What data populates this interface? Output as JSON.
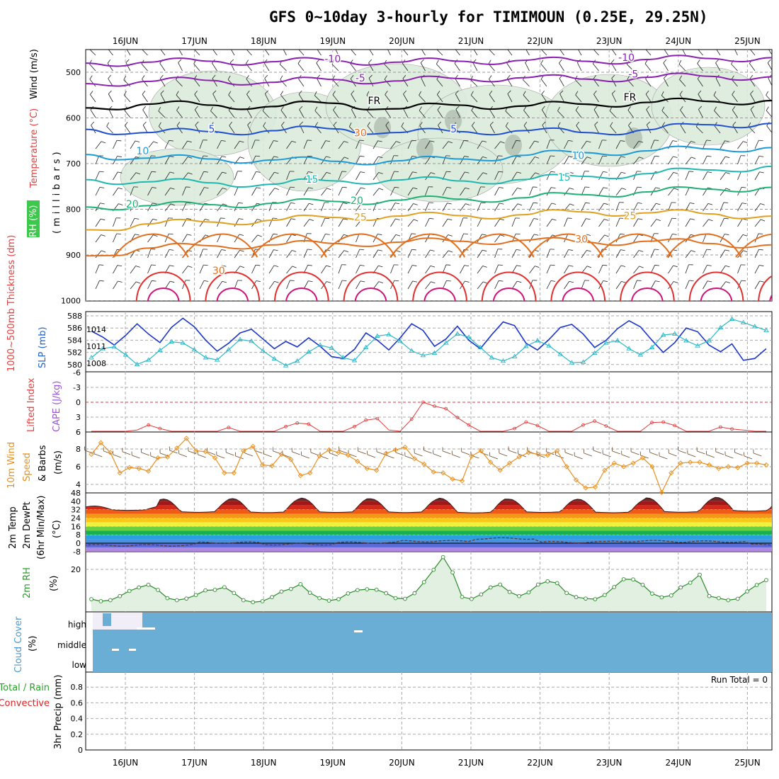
{
  "title": "GFS 0~10day 3-hourly for TIMIMOUN (0.25E, 29.25N)",
  "colors": {
    "temp_m10": "#8a1fb0",
    "temp_m5": "#8a1fb0",
    "temp_fr": "#000000",
    "temp_5": "#1f4fd0",
    "temp_10": "#1c9ad6",
    "temp_15": "#1fb8b0",
    "temp_20": "#1fb078",
    "temp_25": "#e0a020",
    "temp_30": "#e07020",
    "temp_35": "#e03030",
    "temp_40": "#d0107a",
    "rh_fill": "#dcecdc",
    "rh_line": "#2a8a2a",
    "thickness": "#1a35c8",
    "slp": "#2ab8c8",
    "cape": "#e03a3a",
    "wind10": "#e89020",
    "cloud": "#6aaed6",
    "precip_total": "#2aa02a",
    "precip_conv": "#e02020"
  },
  "days": [
    "16JUN",
    "17JUN",
    "18JUN",
    "19JUN",
    "20JUN",
    "21JUN",
    "22JUN",
    "23JUN",
    "24JUN",
    "25JUN"
  ],
  "panels": {
    "upper": {
      "label_rh": "RH (%)",
      "label_temp": "Temperature (°C)",
      "label_wind": "Wind (m/s)",
      "label_mb": "(millibars)",
      "yticks": [
        "500",
        "600",
        "700",
        "800",
        "900",
        "1000"
      ],
      "contours": [
        {
          "key": "temp_m10",
          "label": "-10",
          "mb": [
            480,
            478,
            476,
            477,
            475,
            478,
            476,
            474,
            476,
            472,
            470,
            468
          ]
        },
        {
          "key": "temp_m5",
          "label": "-5",
          "mb": [
            525,
            520,
            518,
            522,
            516,
            519,
            514,
            512,
            515,
            511,
            509,
            510
          ]
        },
        {
          "key": "temp_fr",
          "label": "FR",
          "mb": [
            578,
            570,
            572,
            575,
            568,
            580,
            572,
            574,
            570,
            566,
            564,
            562
          ]
        },
        {
          "key": "temp_5",
          "label": "5",
          "mb": [
            625,
            632,
            630,
            628,
            624,
            632,
            630,
            628,
            632,
            626,
            615,
            612
          ]
        },
        {
          "key": "temp_10",
          "label": "10",
          "mb": [
            680,
            688,
            690,
            692,
            695,
            694,
            690,
            682,
            676,
            672,
            668,
            665
          ]
        },
        {
          "key": "temp_15",
          "label": "15",
          "mb": [
            735,
            740,
            742,
            745,
            738,
            736,
            738,
            735,
            728,
            722,
            714,
            706
          ]
        },
        {
          "key": "temp_20",
          "label": "20",
          "mb": [
            795,
            792,
            790,
            787,
            783,
            780,
            778,
            775,
            768,
            762,
            756,
            752
          ]
        },
        {
          "key": "temp_25",
          "label": "25",
          "mb": [
            845,
            832,
            828,
            824,
            818,
            815,
            814,
            812,
            806,
            808,
            810,
            815
          ]
        },
        {
          "key": "temp_30",
          "label": "30",
          "mb": [
            902,
            885,
            880,
            878,
            875,
            872,
            870,
            868,
            872,
            870,
            875,
            878
          ]
        }
      ],
      "contour_labels": [
        {
          "key": "temp_m10",
          "text": "-10",
          "day": 3.0,
          "mb": 478
        },
        {
          "key": "temp_m10",
          "text": "-10",
          "day": 7.25,
          "mb": 475
        },
        {
          "key": "temp_m5",
          "text": "-5",
          "day": 3.4,
          "mb": 520
        },
        {
          "key": "temp_m5",
          "text": "-5",
          "day": 7.35,
          "mb": 512
        },
        {
          "key": "temp_fr",
          "text": "FR",
          "day": 3.6,
          "mb": 570
        },
        {
          "key": "temp_fr",
          "text": "FR",
          "day": 7.3,
          "mb": 562
        },
        {
          "key": "temp_5",
          "text": "5",
          "day": 1.25,
          "mb": 632
        },
        {
          "key": "temp_5",
          "text": "5",
          "day": 4.75,
          "mb": 632
        },
        {
          "key": "temp_10",
          "text": "10",
          "day": 0.25,
          "mb": 680
        },
        {
          "key": "temp_10",
          "text": "10",
          "day": 6.55,
          "mb": 690
        },
        {
          "key": "temp_15",
          "text": "15",
          "day": 2.7,
          "mb": 742
        },
        {
          "key": "temp_15",
          "text": "15",
          "day": 6.35,
          "mb": 737
        },
        {
          "key": "temp_20",
          "text": "20",
          "day": 0.1,
          "mb": 796
        },
        {
          "key": "temp_20",
          "text": "20",
          "day": 3.35,
          "mb": 788
        },
        {
          "key": "temp_25",
          "text": "25",
          "day": 3.4,
          "mb": 825
        },
        {
          "key": "temp_25",
          "text": "25",
          "day": 7.3,
          "mb": 822
        },
        {
          "key": "temp_30",
          "text": "30",
          "day": 6.6,
          "mb": 873
        },
        {
          "key": "temp_30",
          "text": "30",
          "day": 1.35,
          "mb": 942
        },
        {
          "key": "temp_30",
          "text": "30",
          "day": 3.4,
          "mb": 640
        }
      ]
    },
    "thick_slp": {
      "label_thick": "1000~500mb Thickness (dm)",
      "label_slp": "SLP (mb)",
      "left_ticks": [
        "588",
        "586",
        "584",
        "582",
        "580"
      ],
      "right_ticks": [
        "1014",
        "1011",
        "1008"
      ],
      "thickness_dm": [
        585.5,
        584.5,
        583.2,
        584.8,
        586.7,
        585.0,
        583.6,
        586.1,
        587.6,
        586.2,
        584.0,
        582.2,
        583.5,
        585.2,
        585.8,
        584.2,
        582.6,
        583.8,
        582.9,
        584.4,
        583.0,
        581.3,
        581.0,
        582.5,
        585.2,
        584.0,
        582.4,
        584.4,
        586.7,
        585.6,
        583.0,
        584.2,
        586.3,
        584.0,
        582.6,
        584.9,
        587.0,
        586.4,
        583.5,
        582.4,
        584.1,
        586.1,
        586.6,
        585.0,
        582.8,
        584.0,
        585.9,
        587.2,
        586.2,
        584.0,
        582.0,
        583.6,
        586.0,
        585.4,
        583.2,
        582.1,
        583.4,
        580.7,
        581.0,
        582.6
      ],
      "slp_mb": [
        1009.0,
        1010.6,
        1010.9,
        1009.5,
        1007.8,
        1008.6,
        1010.3,
        1011.8,
        1011.6,
        1010.4,
        1009.0,
        1008.6,
        1010.4,
        1012.2,
        1011.9,
        1010.2,
        1008.8,
        1007.6,
        1008.4,
        1010.0,
        1011.2,
        1010.7,
        1009.0,
        1008.5,
        1010.8,
        1012.8,
        1013.1,
        1011.9,
        1010.2,
        1009.4,
        1009.8,
        1011.6,
        1013.2,
        1012.6,
        1010.8,
        1009.0,
        1008.4,
        1009.2,
        1011.0,
        1012.0,
        1011.1,
        1009.6,
        1008.1,
        1008.2,
        1009.8,
        1011.6,
        1012.0,
        1010.6,
        1009.5,
        1010.8,
        1013.0,
        1013.2,
        1012.0,
        1011.1,
        1012.0,
        1014.3,
        1015.8,
        1015.2,
        1014.5,
        1013.8
      ]
    },
    "cape_li": {
      "label_li": "Lifted Index",
      "label_cape": "CAPE (J/kg)",
      "yticks": [
        "-6",
        "-3",
        "0",
        "3",
        "6"
      ],
      "li": [
        6.5,
        6.2,
        6.6,
        6.4,
        5.6,
        4.6,
        5.3,
        6.6,
        6.5,
        6.3,
        6.6,
        6.5,
        5.1,
        6.2,
        6.6,
        6.5,
        6.4,
        4.9,
        4.2,
        4.4,
        6.2,
        6.6,
        6.5,
        4.9,
        3.6,
        3.3,
        5.6,
        6.1,
        3.4,
        0.0,
        0.8,
        1.3,
        3.1,
        4.6,
        6.3,
        6.6,
        6.2,
        5.3,
        4.0,
        4.7,
        6.5,
        6.6,
        6.2,
        4.6,
        3.8,
        4.8,
        6.2,
        6.6,
        6.3,
        4.1,
        4.0,
        4.7,
        6.3,
        6.5,
        6.4,
        5.0,
        5.4,
        5.6,
        6.5,
        6.4
      ]
    },
    "wind10m": {
      "label_top": "10m Wind",
      "label_speed": "Speed",
      "label_barbs": "& Barbs",
      "label_unit": "(m/s)",
      "yticks": [
        "8",
        "6",
        "4"
      ],
      "speed": [
        7.4,
        8.7,
        7.6,
        5.3,
        5.9,
        5.8,
        5.5,
        7.0,
        7.1,
        8.1,
        9.2,
        7.8,
        7.7,
        7.0,
        5.3,
        5.3,
        7.8,
        8.3,
        6.2,
        6.1,
        7.4,
        6.8,
        5.0,
        5.3,
        7.2,
        7.9,
        7.6,
        7.3,
        6.6,
        5.8,
        5.6,
        7.5,
        7.9,
        8.2,
        6.9,
        6.3,
        5.4,
        5.3,
        4.6,
        4.4,
        7.2,
        7.8,
        6.5,
        5.6,
        6.4,
        7.1,
        7.6,
        7.4,
        7.3,
        7.8,
        6.0,
        4.5,
        3.6,
        3.7,
        5.6,
        6.4,
        6.0,
        6.4,
        7.0,
        6.0,
        3.1,
        5.3,
        6.4,
        6.5,
        6.5,
        6.2,
        5.8,
        6.0,
        5.9,
        6.4,
        6.4,
        6.2
      ]
    },
    "temp2m": {
      "label_temp": "2m Temp",
      "label_dew": "2m DewPt",
      "label_minmax": "(6hr Min/Max)",
      "label_unit": "(°C)",
      "yticks": [
        "48",
        "40",
        "32",
        "24",
        "16",
        "8",
        "0",
        "-8"
      ],
      "day_max": [
        35.5,
        42.2,
        42.6,
        43.1,
        42.4,
        43.0,
        42.1,
        42.0,
        43.3,
        43.8
      ],
      "night_min": [
        32.0,
        30.1,
        29.8,
        30.0,
        29.9,
        29.6,
        30.0,
        29.7,
        30.2,
        31.2
      ],
      "dewpoint": [
        -2.0,
        0.5,
        -1.0,
        0.5,
        2.0,
        4.5,
        1.0,
        2.0,
        1.5,
        -1.5
      ]
    },
    "rh2m": {
      "label_rh": "2m RH",
      "label_unit": "(%)",
      "yticks": [
        "20"
      ],
      "rh": [
        5.5,
        4.5,
        5.0,
        7.0,
        9.5,
        11.2,
        12.5,
        10.0,
        6.0,
        5.0,
        5.8,
        7.5,
        9.8,
        10.0,
        11.3,
        8.5,
        5.0,
        4.0,
        4.5,
        6.5,
        9.2,
        10.5,
        12.8,
        8.6,
        6.0,
        4.8,
        5.5,
        8.3,
        9.9,
        10.3,
        10.1,
        8.4,
        6.0,
        5.7,
        8.4,
        13.8,
        19.8,
        26.0,
        18.5,
        6.6,
        5.6,
        7.8,
        11.2,
        12.6,
        9.0,
        7.0,
        8.8,
        12.6,
        14.2,
        13.3,
        8.5,
        6.5,
        5.8,
        5.5,
        7.5,
        11.4,
        15.2,
        15.1,
        12.5,
        8.2,
        6.4,
        7.3,
        11.2,
        13.5,
        17.4,
        7.0,
        6.0,
        5.0,
        5.7,
        9.3,
        12.4,
        14.8
      ]
    },
    "cloud": {
      "label_cloud": "Cloud Cover",
      "label_unit": "(%)",
      "rows": [
        "high",
        "middle",
        "low"
      ]
    },
    "precip": {
      "label_total": "Total / Rain",
      "label_conv": "Convective",
      "label_precip": "3hr Precip (mm)",
      "yticks": [
        "0.8",
        "0.6",
        "0.4",
        "0.2",
        "0"
      ],
      "run_total_label": "Run Total = 0"
    }
  }
}
